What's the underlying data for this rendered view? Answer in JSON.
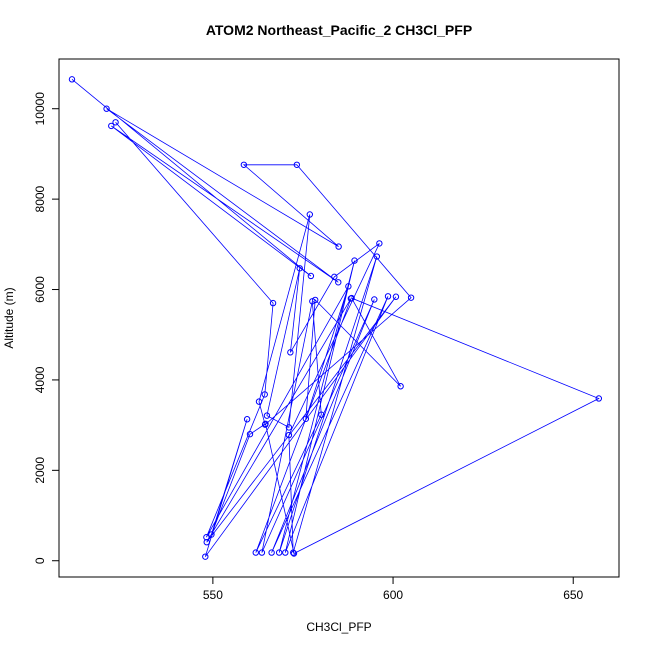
{
  "chart_data": {
    "type": "line",
    "title": "ATOM2 Northeast_Pacific_2 CH3Cl_PFP",
    "xlabel": "CH3Cl_PFP",
    "ylabel": "Altitude (m)",
    "x_ticks": [
      550,
      600,
      650
    ],
    "y_ticks": [
      0,
      2000,
      4000,
      6000,
      8000,
      10000
    ],
    "xlim": [
      507.3,
      662.7
    ],
    "ylim": [
      -360,
      11100
    ],
    "grid": false,
    "legend": "none",
    "series": [
      {
        "color": "#0000ff",
        "points": [
          [
            510.9,
            10650
          ],
          [
            577.2,
            6300
          ],
          [
            521.8,
            9620
          ],
          [
            584.8,
            6160
          ],
          [
            520.5,
            10000
          ],
          [
            584.9,
            6950
          ],
          [
            558.6,
            8760
          ],
          [
            573.3,
            8760
          ],
          [
            605.0,
            5820
          ],
          [
            564.5,
            3010
          ],
          [
            562.8,
            3520
          ],
          [
            576.9,
            7660
          ],
          [
            571.1,
            2950
          ],
          [
            565.0,
            3210
          ],
          [
            574.1,
            6470
          ],
          [
            571.5,
            4610
          ],
          [
            583.7,
            6280
          ],
          [
            596.2,
            7020
          ],
          [
            571.1,
            2780
          ],
          [
            572.3,
            180
          ],
          [
            595.5,
            6730
          ],
          [
            568.4,
            180
          ],
          [
            589.3,
            6640
          ],
          [
            570.1,
            180
          ],
          [
            598.6,
            5850
          ],
          [
            566.3,
            180
          ],
          [
            594.8,
            5780
          ],
          [
            563.6,
            180
          ],
          [
            577.6,
            5740
          ],
          [
            580.1,
            3230
          ],
          [
            561.9,
            180
          ],
          [
            588.3,
            5800
          ],
          [
            548.3,
            410
          ],
          [
            600.8,
            5840
          ],
          [
            547.9,
            90
          ],
          [
            559.5,
            3130
          ],
          [
            549.6,
            580
          ],
          [
            560.3,
            2800
          ],
          [
            564.6,
            3030
          ],
          [
            572.5,
            160
          ],
          [
            657.1,
            3590
          ],
          [
            588.5,
            5810
          ],
          [
            602.1,
            3860
          ],
          [
            578.4,
            5770
          ],
          [
            575.8,
            3140
          ],
          [
            587.6,
            6070
          ],
          [
            548.2,
            520
          ],
          [
            564.4,
            3680
          ],
          [
            566.7,
            5700
          ],
          [
            523.0,
            9700
          ]
        ]
      }
    ]
  }
}
